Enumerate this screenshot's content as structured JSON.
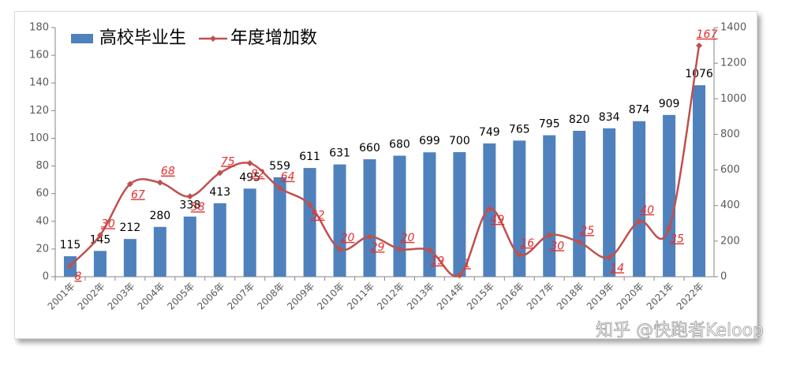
{
  "chart_data": {
    "type": "combo",
    "categories": [
      "2001年",
      "2002年",
      "2003年",
      "2004年",
      "2005年",
      "2006年",
      "2007年",
      "2008年",
      "2009年",
      "2010年",
      "2011年",
      "2012年",
      "2013年",
      "2014年",
      "2015年",
      "2016年",
      "2017年",
      "2018年",
      "2019年",
      "2020年",
      "2021年",
      "2022年"
    ],
    "series": [
      {
        "name": "高校毕业生",
        "type": "bar",
        "axis": "y2",
        "color": "#4f81bd",
        "values": [
          115,
          145,
          212,
          280,
          338,
          413,
          495,
          559,
          611,
          631,
          660,
          680,
          699,
          700,
          749,
          765,
          795,
          820,
          834,
          874,
          909,
          1076
        ]
      },
      {
        "name": "年度增加数",
        "type": "line",
        "color": "#c0504d",
        "values": [
          8,
          30,
          67,
          68,
          58,
          75,
          82,
          64,
          52,
          20,
          29,
          20,
          19,
          1,
          49,
          16,
          30,
          25,
          14,
          40,
          35,
          167
        ]
      }
    ],
    "ylim": [
      0,
      180
    ],
    "yticks": [
      0,
      20,
      40,
      60,
      80,
      100,
      120,
      140,
      160,
      180
    ],
    "y2lim": [
      0,
      1400
    ],
    "y2ticks": [
      0,
      200,
      400,
      600,
      800,
      1000,
      1200,
      1400
    ],
    "legend": "top-left"
  },
  "watermark": "知乎 @快跑者Keloop"
}
